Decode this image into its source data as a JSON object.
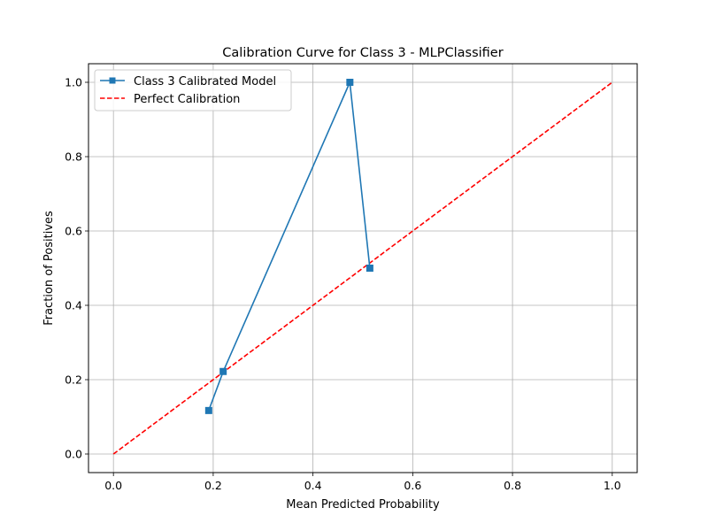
{
  "chart_data": {
    "type": "line",
    "title": "Calibration Curve for Class 3 - MLPClassifier",
    "xlabel": "Mean Predicted Probability",
    "ylabel": "Fraction of Positives",
    "xlim": [
      -0.05,
      1.05
    ],
    "ylim": [
      -0.05,
      1.05
    ],
    "xticks": [
      0.0,
      0.2,
      0.4,
      0.6,
      0.8,
      1.0
    ],
    "yticks": [
      0.0,
      0.2,
      0.4,
      0.6,
      0.8,
      1.0
    ],
    "xtick_labels": [
      "0.0",
      "0.2",
      "0.4",
      "0.6",
      "0.8",
      "1.0"
    ],
    "ytick_labels": [
      "0.0",
      "0.2",
      "0.4",
      "0.6",
      "0.8",
      "1.0"
    ],
    "grid": true,
    "legend_position": "top-left",
    "series": [
      {
        "name": "Class 3 Calibrated Model",
        "x": [
          0.191,
          0.22,
          0.474,
          0.514
        ],
        "y": [
          0.117,
          0.222,
          1.0,
          0.5
        ],
        "color": "#1f77b4",
        "style": "solid",
        "marker": "square"
      },
      {
        "name": "Perfect Calibration",
        "x": [
          0.0,
          1.0
        ],
        "y": [
          0.0,
          1.0
        ],
        "color": "#ff0000",
        "style": "dashed",
        "marker": "none"
      }
    ]
  }
}
